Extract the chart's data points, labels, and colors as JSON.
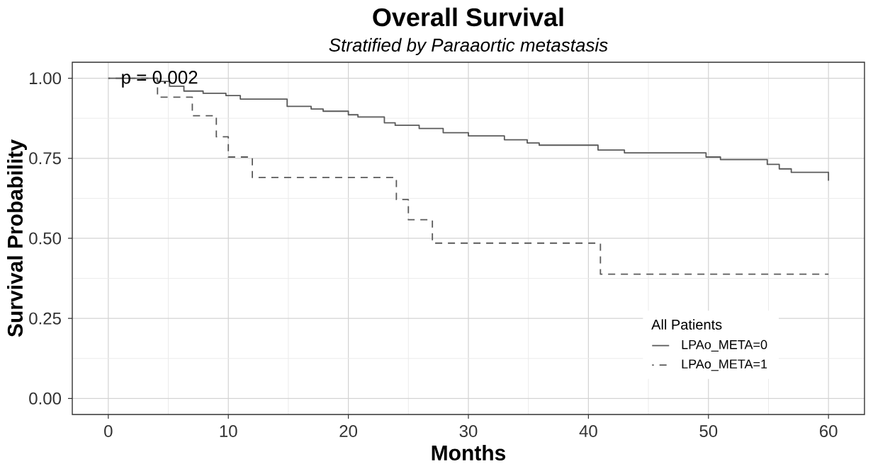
{
  "chart_data": {
    "type": "step",
    "title": "Overall Survival",
    "subtitle": "Stratified by Paraaortic metastasis",
    "xlabel": "Months",
    "ylabel": "Survival Probability",
    "legend_title": "All Patients",
    "annotations": [
      "p = 0.002"
    ],
    "xlim": [
      -3,
      63
    ],
    "ylim": [
      -0.05,
      1.05
    ],
    "xticks": [
      0,
      10,
      20,
      30,
      40,
      50,
      60
    ],
    "yticks": [
      {
        "value": 0,
        "label": "0.00"
      },
      {
        "value": 0.25,
        "label": "0.25"
      },
      {
        "value": 0.5,
        "label": "0.50"
      },
      {
        "value": 0.75,
        "label": "0.75"
      },
      {
        "value": 1,
        "label": "1.00"
      }
    ],
    "grid": true,
    "legend": "bottom right",
    "marker": "none",
    "series": [
      {
        "name": "LPAo_META=0",
        "color": "#5a5a5a",
        "line_style": "solid",
        "x": [
          0,
          4.1,
          5.1,
          6.3,
          7.9,
          9.8,
          11,
          14.9,
          16.9,
          17.9,
          20,
          20.8,
          23,
          23.9,
          25.9,
          27.9,
          30,
          33,
          34.9,
          35.9,
          40.8,
          43,
          49.8,
          51,
          54.9,
          55.9,
          56.9,
          60
        ],
        "values": [
          1.0,
          0.99,
          0.975,
          0.96,
          0.953,
          0.946,
          0.935,
          0.912,
          0.904,
          0.897,
          0.886,
          0.879,
          0.861,
          0.853,
          0.843,
          0.83,
          0.82,
          0.808,
          0.798,
          0.791,
          0.776,
          0.767,
          0.754,
          0.746,
          0.731,
          0.717,
          0.706,
          0.68
        ]
      },
      {
        "name": "LPAo_META=1",
        "color": "#5a5a5a",
        "line_style": "dashed",
        "x": [
          0,
          4.1,
          7,
          9,
          10,
          12,
          24,
          25,
          27,
          41,
          60
        ],
        "values": [
          1.0,
          0.941,
          0.883,
          0.817,
          0.754,
          0.69,
          0.621,
          0.558,
          0.485,
          0.388,
          0.388
        ]
      }
    ]
  }
}
